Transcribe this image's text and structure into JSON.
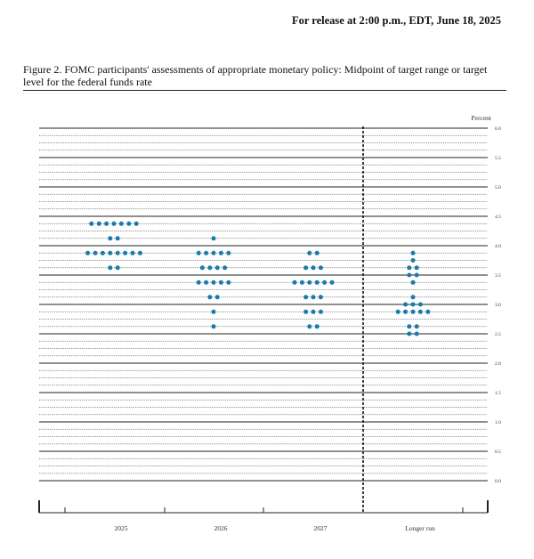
{
  "header": {
    "release": "For release at 2:00 p.m., EDT, June 18, 2025",
    "caption": "Figure 2.  FOMC participants' assessments of appropriate monetary policy: Midpoint of target range or target level for the federal funds rate"
  },
  "chart_data": {
    "type": "scatter",
    "title": "",
    "ylabel": "Percent",
    "ylim": [
      0,
      6
    ],
    "y_major_ticks": [
      "0.0",
      "0.5",
      "1.0",
      "1.5",
      "2.0",
      "2.5",
      "3.0",
      "3.5",
      "4.0",
      "4.5",
      "5.0",
      "5.5",
      "6.0"
    ],
    "categories": [
      "2025",
      "2026",
      "2027",
      "Longer run"
    ],
    "dot_color": "#1a7bab",
    "separator_before": "Longer run",
    "counts": [
      {
        "category": "2025",
        "dots": [
          {
            "y": 4.375,
            "n": 7
          },
          {
            "y": 4.125,
            "n": 2
          },
          {
            "y": 3.875,
            "n": 8
          },
          {
            "y": 3.625,
            "n": 2
          }
        ]
      },
      {
        "category": "2026",
        "dots": [
          {
            "y": 4.125,
            "n": 1
          },
          {
            "y": 3.875,
            "n": 5
          },
          {
            "y": 3.625,
            "n": 4
          },
          {
            "y": 3.375,
            "n": 5
          },
          {
            "y": 3.125,
            "n": 2
          },
          {
            "y": 2.875,
            "n": 1
          },
          {
            "y": 2.625,
            "n": 1
          }
        ]
      },
      {
        "category": "2027",
        "dots": [
          {
            "y": 3.875,
            "n": 2
          },
          {
            "y": 3.625,
            "n": 3
          },
          {
            "y": 3.375,
            "n": 6
          },
          {
            "y": 3.125,
            "n": 3
          },
          {
            "y": 2.875,
            "n": 3
          },
          {
            "y": 2.625,
            "n": 2
          }
        ]
      },
      {
        "category": "Longer run",
        "dots": [
          {
            "y": 3.875,
            "n": 1
          },
          {
            "y": 3.75,
            "n": 1
          },
          {
            "y": 3.625,
            "n": 2
          },
          {
            "y": 3.5,
            "n": 2
          },
          {
            "y": 3.375,
            "n": 1
          },
          {
            "y": 3.125,
            "n": 1
          },
          {
            "y": 3.0,
            "n": 3
          },
          {
            "y": 2.875,
            "n": 5
          },
          {
            "y": 2.625,
            "n": 2
          },
          {
            "y": 2.5,
            "n": 2
          }
        ]
      }
    ]
  }
}
